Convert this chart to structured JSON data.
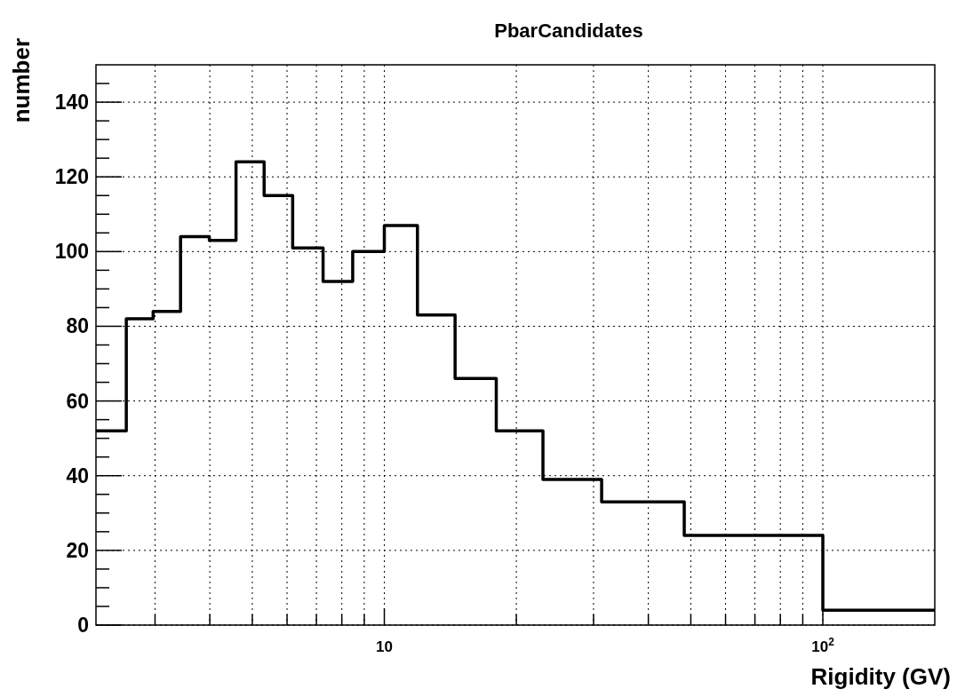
{
  "chart_data": {
    "type": "histogram",
    "title": "PbarCandidates",
    "xlabel": "Rigidity (GV)",
    "ylabel": "number",
    "bins": [
      2.2,
      2.58,
      2.97,
      3.43,
      3.99,
      4.59,
      5.32,
      6.18,
      7.25,
      8.47,
      10,
      11.9,
      14.5,
      18,
      23,
      31.3,
      48.3,
      100,
      180
    ],
    "values": [
      52,
      82,
      84,
      104,
      103,
      124,
      115,
      101,
      92,
      100,
      107,
      83,
      66,
      52,
      39,
      33,
      24,
      4
    ],
    "color": "#000000",
    "log": "x",
    "grid": true,
    "xlim": [
      2.2,
      180
    ],
    "xticks": [
      {
        "value": 3,
        "label": null
      },
      {
        "value": 4,
        "label": null
      },
      {
        "value": 5,
        "label": null
      },
      {
        "value": 6,
        "label": null
      },
      {
        "value": 7,
        "label": null
      },
      {
        "value": 8,
        "label": null
      },
      {
        "value": 9,
        "label": null
      },
      10,
      {
        "value": 20,
        "label": null
      },
      {
        "value": 30,
        "label": null
      },
      {
        "value": 40,
        "label": null
      },
      {
        "value": 50,
        "label": null
      },
      {
        "value": 60,
        "label": null
      },
      {
        "value": 70,
        "label": null
      },
      {
        "value": 80,
        "label": null
      },
      {
        "value": 90,
        "label": null
      },
      {
        "value": 100,
        "label": "10$^{2}$"
      }
    ],
    "ylim": [
      0,
      150
    ],
    "yticks": [
      0,
      {
        "value": 5,
        "label": null
      },
      {
        "value": 10,
        "label": null
      },
      {
        "value": 15,
        "label": null
      },
      20,
      {
        "value": 25,
        "label": null
      },
      {
        "value": 30,
        "label": null
      },
      {
        "value": 35,
        "label": null
      },
      40,
      {
        "value": 45,
        "label": null
      },
      {
        "value": 50,
        "label": null
      },
      {
        "value": 55,
        "label": null
      },
      60,
      {
        "value": 65,
        "label": null
      },
      {
        "value": 70,
        "label": null
      },
      {
        "value": 75,
        "label": null
      },
      80,
      {
        "value": 85,
        "label": null
      },
      {
        "value": 90,
        "label": null
      },
      {
        "value": 95,
        "label": null
      },
      100,
      {
        "value": 105,
        "label": null
      },
      {
        "value": 110,
        "label": null
      },
      {
        "value": 115,
        "label": null
      },
      120,
      {
        "value": 125,
        "label": null
      },
      {
        "value": 130,
        "label": null
      },
      {
        "value": 135,
        "label": null
      },
      140,
      {
        "value": 145,
        "label": null
      }
    ]
  }
}
